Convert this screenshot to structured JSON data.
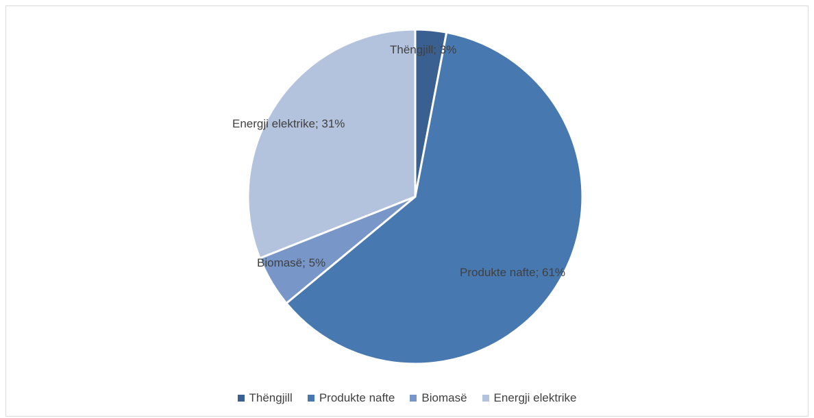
{
  "chart_data": {
    "type": "pie",
    "categories": [
      "Thëngjill",
      "Produkte nafte",
      "Biomasë",
      "Energji elektrike"
    ],
    "values": [
      3,
      61,
      5,
      31
    ],
    "unit": "%",
    "data_labels": [
      "Thëngjill; 3%",
      "Produkte nafte; 61%",
      "Biomasë; 5%",
      "Energji elektrike; 31%"
    ],
    "colors": [
      "#3a5f91",
      "#4878b0",
      "#7896c8",
      "#b4c3dd"
    ],
    "legend_position": "bottom",
    "title": ""
  }
}
